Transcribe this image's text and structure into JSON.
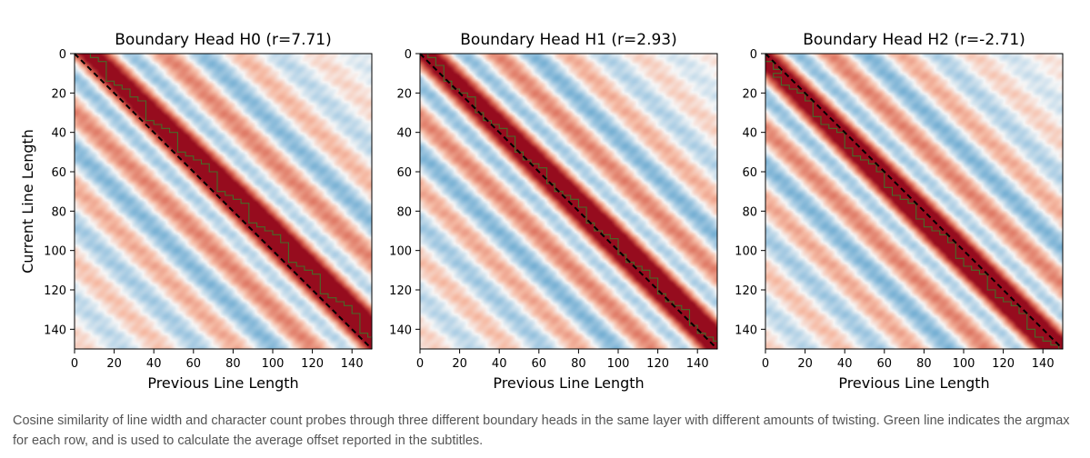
{
  "chart_data": [
    {
      "type": "heatmap",
      "title": "Boundary Head H0 (r=7.71)",
      "xlabel": "Previous Line Length",
      "ylabel": "Current Line Length",
      "xlim": [
        0,
        150
      ],
      "ylim": [
        150,
        0
      ],
      "xticks": [
        "0",
        "20",
        "40",
        "60",
        "80",
        "100",
        "120",
        "140"
      ],
      "yticks": [
        "0",
        "20",
        "40",
        "60",
        "80",
        "100",
        "120",
        "140"
      ],
      "colormap": "RdBu_r",
      "peak_offset": 8,
      "band_period": 38,
      "band_width": 13,
      "diagonal_line": "y = x (dashed black)",
      "argmax_line_color": "#3a7d2a"
    },
    {
      "type": "heatmap",
      "title": "Boundary Head H1 (r=2.93)",
      "xlabel": "Previous Line Length",
      "ylabel": "",
      "xlim": [
        0,
        150
      ],
      "ylim": [
        150,
        0
      ],
      "xticks": [
        "0",
        "20",
        "40",
        "60",
        "80",
        "100",
        "120",
        "140"
      ],
      "yticks": [
        "0",
        "20",
        "40",
        "60",
        "80",
        "100",
        "120",
        "140"
      ],
      "colormap": "RdBu_r",
      "peak_offset": 3,
      "band_period": 36,
      "band_width": 12,
      "diagonal_line": "y = x (dashed black)",
      "argmax_line_color": "#3a7d2a"
    },
    {
      "type": "heatmap",
      "title": "Boundary Head H2 (r=-2.71)",
      "xlabel": "Previous Line Length",
      "ylabel": "",
      "xlim": [
        0,
        150
      ],
      "ylim": [
        150,
        0
      ],
      "xticks": [
        "0",
        "20",
        "40",
        "60",
        "80",
        "100",
        "120",
        "140"
      ],
      "yticks": [
        "0",
        "20",
        "40",
        "60",
        "80",
        "100",
        "120",
        "140"
      ],
      "colormap": "RdBu_r",
      "peak_offset": -3,
      "band_period": 36,
      "band_width": 12,
      "diagonal_line": "y = x (dashed black)",
      "argmax_line_color": "#3a7d2a"
    }
  ],
  "colors": {
    "red_strong": "#9e0d1f",
    "red": "#d6604d",
    "neutral": "#f7f7f7",
    "blue": "#4393c3",
    "blue_strong": "#1f5c99",
    "caption": "#555555"
  },
  "caption": "Cosine similarity of line width and character count probes through three different boundary heads in the same layer with different amounts of twisting. Green line indicates the argmax for each row, and is used to calculate the average offset reported in the subtitles."
}
